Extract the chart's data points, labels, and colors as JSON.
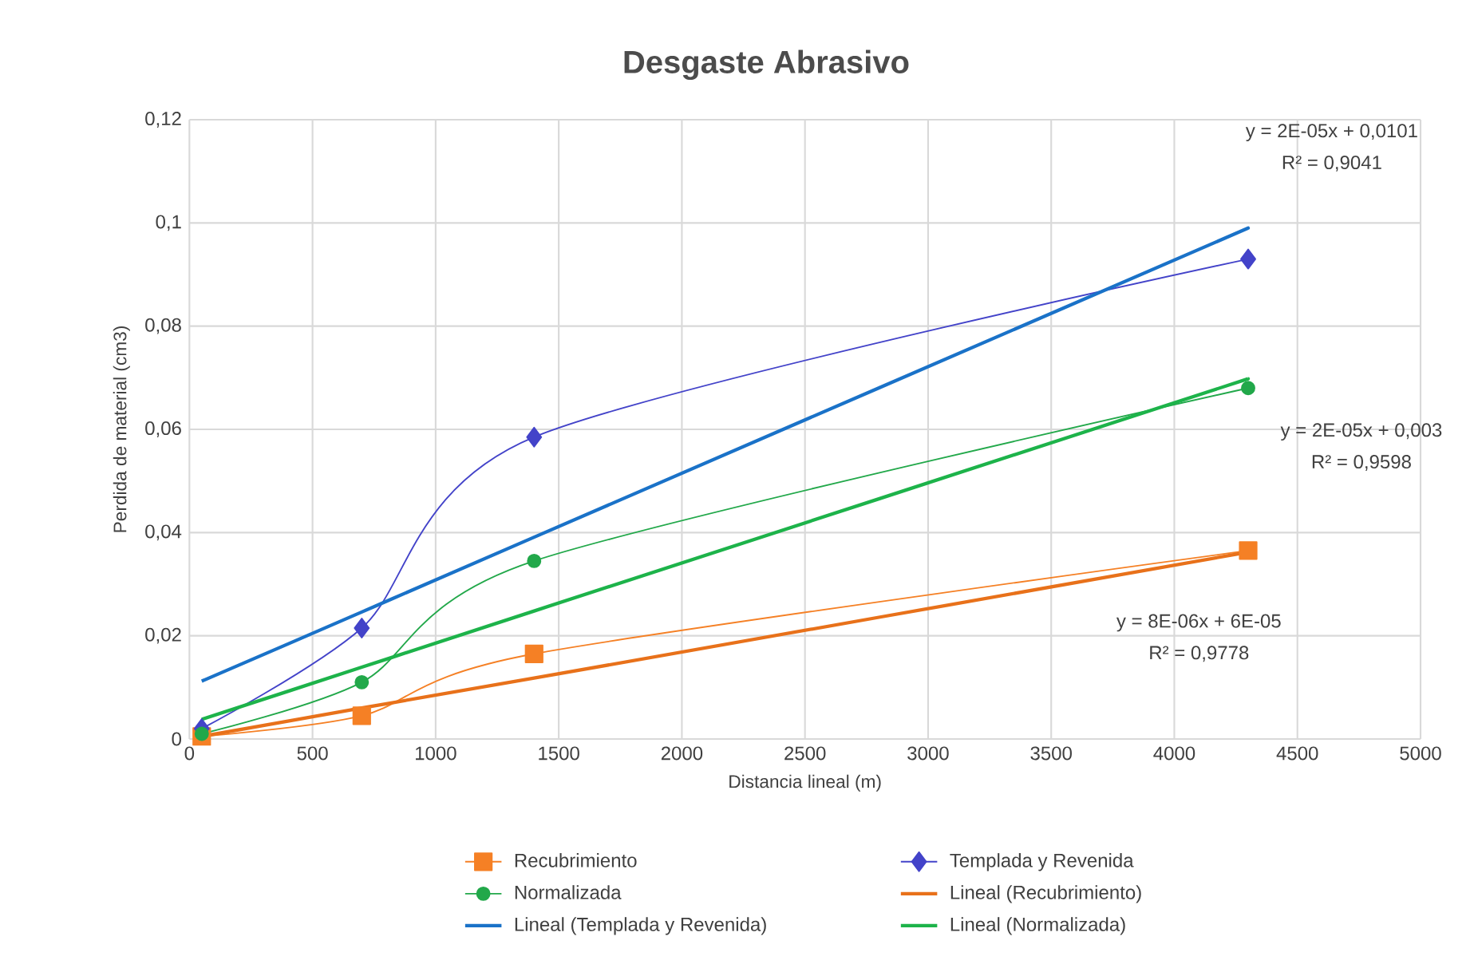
{
  "chart_data": {
    "type": "line",
    "title": "Desgaste Abrasivo",
    "xlabel": "Distancia lineal (m)",
    "ylabel": "Perdida de material (cm3)",
    "x": [
      50,
      700,
      1400,
      4300
    ],
    "series": [
      {
        "name": "Recubrimiento",
        "color": "#f58025",
        "marker": "square",
        "values": [
          0.0005,
          0.0045,
          0.0165,
          0.0365
        ]
      },
      {
        "name": "Templada y Revenida",
        "color": "#4343c9",
        "marker": "diamond",
        "values": [
          0.002,
          0.0215,
          0.0585,
          0.093
        ]
      },
      {
        "name": "Normalizada",
        "color": "#22a84a",
        "marker": "circle",
        "values": [
          0.001,
          0.011,
          0.0345,
          0.068
        ]
      },
      {
        "name": "Lineal (Recubrimiento)",
        "color": "#e8711a",
        "marker": "none",
        "values": [
          0.0005,
          0.006,
          0.0118,
          0.0362
        ]
      },
      {
        "name": "Lineal (Templada y Revenida)",
        "color": "#1a72c8",
        "marker": "none",
        "values": [
          0.0112,
          0.0246,
          0.0391,
          0.099
        ]
      },
      {
        "name": "Lineal (Normalizada)",
        "color": "#1db34a",
        "marker": "none",
        "values": [
          0.0038,
          0.0139,
          0.0248,
          0.0698
        ]
      }
    ],
    "xlim": [
      0,
      5000
    ],
    "xticks": [
      0,
      500,
      1000,
      1500,
      2000,
      2500,
      3000,
      3500,
      4000,
      4500,
      5000
    ],
    "ylim": [
      0,
      0.12
    ],
    "yticks": [
      {
        "value": 0,
        "label": "0"
      },
      {
        "value": 0.02,
        "label": "0,02"
      },
      {
        "value": 0.04,
        "label": "0,04"
      },
      {
        "value": 0.06,
        "label": "0,06"
      },
      {
        "value": 0.08,
        "label": "0,08"
      },
      {
        "value": 0.1,
        "label": "0,1"
      },
      {
        "value": 0.12,
        "label": "0,12"
      }
    ],
    "grid": true,
    "legend": "bottom",
    "annotations": [
      "y = 2E-05x + 0,0101",
      "R² = 0,9041",
      "y = 2E-05x + 0,003",
      "R² = 0,9598",
      "y = 8E-06x + 6E-05",
      "R² = 0,9778"
    ]
  }
}
